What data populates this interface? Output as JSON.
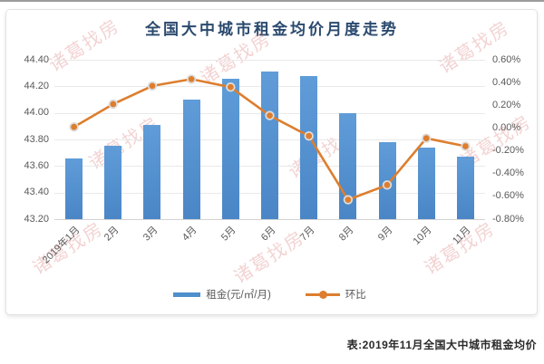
{
  "page": {
    "caption": "表:2019年11月全国大中城市租金均价"
  },
  "watermark": {
    "text": "诸葛找房"
  },
  "legend": {
    "rent_label": "租金(元/㎡/月)",
    "mom_label": "环比"
  },
  "chart_data": {
    "type": "bar",
    "combo": "bar+line",
    "title": "全国大中城市租金均价月度走势",
    "categories": [
      "2019年1月",
      "2月",
      "3月",
      "4月",
      "5月",
      "6月",
      "7月",
      "8月",
      "9月",
      "10月",
      "11月"
    ],
    "series": [
      {
        "name": "租金(元/㎡/月)",
        "type": "bar",
        "axis": "left",
        "values": [
          43.66,
          43.75,
          43.91,
          44.1,
          44.26,
          44.31,
          44.28,
          44.0,
          43.78,
          43.74,
          43.67
        ]
      },
      {
        "name": "环比",
        "type": "line",
        "axis": "right",
        "values": [
          0.01,
          0.21,
          0.37,
          0.43,
          0.36,
          0.11,
          -0.07,
          -0.63,
          -0.5,
          -0.09,
          -0.16
        ]
      }
    ],
    "left_axis": {
      "label": "",
      "min": 43.2,
      "max": 44.4,
      "step": 0.2,
      "ticks": [
        "44.40",
        "44.20",
        "44.00",
        "43.80",
        "43.60",
        "43.40",
        "43.20"
      ]
    },
    "right_axis": {
      "label": "",
      "min": -0.8,
      "max": 0.6,
      "step": 0.2,
      "ticks": [
        "0.60%",
        "0.40%",
        "0.20%",
        "0.00%",
        "-0.20%",
        "-0.40%",
        "-0.60%",
        "-0.80%"
      ]
    },
    "grid": "on (left-axis major gridlines)",
    "legend_position": "bottom",
    "colors": {
      "bar": "#5B9BD5",
      "line": "#DD7E2E",
      "title": "#2b4a6f",
      "tick": "#595959"
    }
  }
}
